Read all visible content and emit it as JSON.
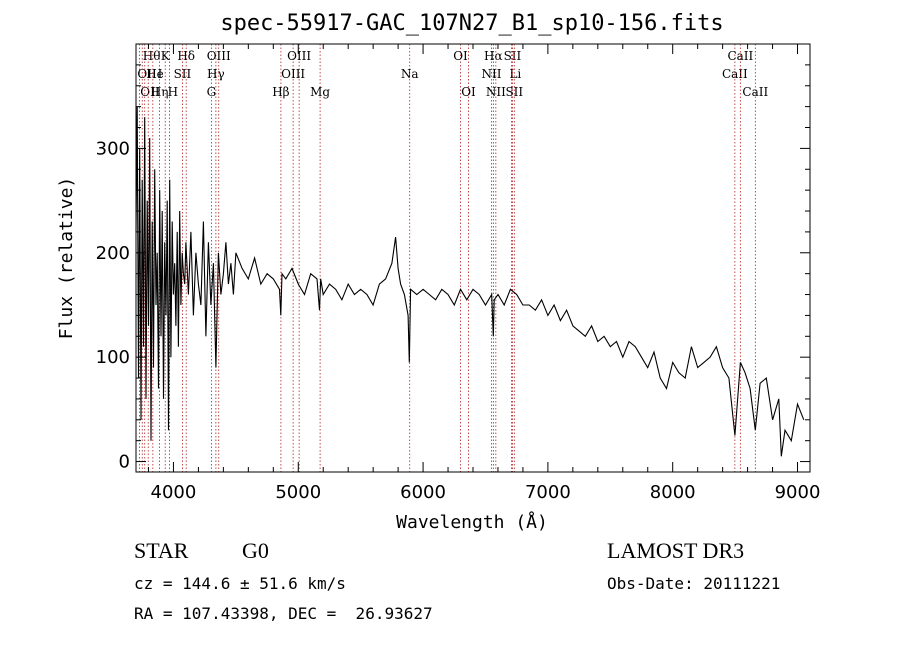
{
  "chart_data": {
    "type": "line",
    "title": "spec-55917-GAC_107N27_B1_sp10-156.fits",
    "xlabel": "Wavelength (Å)",
    "ylabel": "Flux (relative)",
    "xlim": [
      3700,
      9100
    ],
    "ylim": [
      -10,
      400
    ],
    "xticks": [
      4000,
      5000,
      6000,
      7000,
      8000,
      9000
    ],
    "yticks": [
      0,
      100,
      200,
      300
    ],
    "grid": false,
    "series": [
      {
        "x": [
          3700,
          3710,
          3720,
          3730,
          3740,
          3750,
          3760,
          3770,
          3780,
          3790,
          3800,
          3810,
          3820,
          3830,
          3840,
          3850,
          3860,
          3870,
          3880,
          3890,
          3900,
          3910,
          3920,
          3930,
          3940,
          3950,
          3960,
          3970,
          3980,
          3990,
          4000,
          4010,
          4020,
          4030,
          4040,
          4050,
          4060,
          4070,
          4080,
          4090,
          4100,
          4120,
          4140,
          4160,
          4180,
          4200,
          4220,
          4240,
          4260,
          4280,
          4300,
          4320,
          4340,
          4360,
          4380,
          4400,
          4420,
          4440,
          4460,
          4480,
          4500,
          4550,
          4600,
          4650,
          4700,
          4750,
          4800,
          4850,
          4860,
          4870,
          4900,
          4950,
          5000,
          5050,
          5100,
          5150,
          5170,
          5180,
          5200,
          5250,
          5300,
          5350,
          5400,
          5450,
          5500,
          5550,
          5600,
          5650,
          5700,
          5750,
          5780,
          5800,
          5820,
          5850,
          5880,
          5890,
          5900,
          5950,
          6000,
          6050,
          6100,
          6150,
          6200,
          6250,
          6300,
          6350,
          6400,
          6450,
          6500,
          6550,
          6563,
          6570,
          6600,
          6650,
          6700,
          6750,
          6800,
          6850,
          6900,
          6950,
          7000,
          7050,
          7100,
          7150,
          7200,
          7250,
          7300,
          7350,
          7400,
          7450,
          7500,
          7550,
          7600,
          7650,
          7700,
          7750,
          7800,
          7850,
          7900,
          7950,
          8000,
          8050,
          8100,
          8150,
          8200,
          8250,
          8300,
          8350,
          8400,
          8450,
          8498,
          8542,
          8580,
          8620,
          8662,
          8700,
          8750,
          8800,
          8850,
          8870,
          8900,
          8950,
          9000,
          9050
        ],
        "values": [
          220,
          340,
          80,
          300,
          40,
          270,
          110,
          330,
          60,
          250,
          130,
          310,
          20,
          230,
          90,
          280,
          150,
          200,
          70,
          260,
          120,
          240,
          60,
          210,
          140,
          250,
          30,
          270,
          100,
          230,
          160,
          190,
          130,
          220,
          110,
          240,
          150,
          200,
          180,
          170,
          210,
          160,
          220,
          140,
          200,
          170,
          150,
          230,
          120,
          210,
          150,
          190,
          90,
          200,
          160,
          180,
          210,
          170,
          190,
          160,
          200,
          185,
          175,
          195,
          170,
          180,
          175,
          165,
          140,
          180,
          175,
          185,
          170,
          160,
          180,
          175,
          145,
          175,
          160,
          170,
          165,
          155,
          170,
          160,
          165,
          160,
          150,
          170,
          175,
          190,
          215,
          185,
          170,
          160,
          140,
          95,
          165,
          160,
          165,
          160,
          155,
          165,
          160,
          150,
          165,
          155,
          165,
          160,
          150,
          160,
          120,
          155,
          160,
          150,
          165,
          160,
          150,
          150,
          145,
          155,
          140,
          150,
          135,
          145,
          130,
          125,
          120,
          130,
          115,
          120,
          110,
          115,
          100,
          115,
          110,
          100,
          90,
          105,
          80,
          70,
          95,
          85,
          80,
          110,
          90,
          95,
          100,
          110,
          90,
          80,
          25,
          95,
          85,
          70,
          30,
          75,
          80,
          40,
          60,
          5,
          30,
          20,
          55,
          40
        ]
      }
    ],
    "line_markers": [
      {
        "wave": 3727,
        "row": 1,
        "label": "OII",
        "align": "start"
      },
      {
        "wave": 3750,
        "row": 2,
        "label": "OII",
        "align": "start"
      },
      {
        "wave": 3770,
        "row": 0,
        "label": "Hθ",
        "align": "start"
      },
      {
        "wave": 3798,
        "row": 1,
        "label": "He",
        "align": "start"
      },
      {
        "wave": 3835,
        "row": 2,
        "label": "Hη",
        "align": "start"
      },
      {
        "wave": 3889,
        "row": 1,
        "label": "I",
        "align": "start"
      },
      {
        "wave": 3934,
        "row": 0,
        "label": "K",
        "align": "middle"
      },
      {
        "wave": 3969,
        "row": 2,
        "label": "H",
        "align": "start"
      },
      {
        "wave": 4072,
        "row": 1,
        "label": "SII",
        "align": "middle"
      },
      {
        "wave": 4102,
        "row": 0,
        "label": "Hδ",
        "align": "middle"
      },
      {
        "wave": 4304,
        "row": 2,
        "label": "G",
        "align": "middle"
      },
      {
        "wave": 4340,
        "row": 1,
        "label": "Hγ",
        "align": "middle"
      },
      {
        "wave": 4363,
        "row": 0,
        "label": "OIII",
        "align": "middle"
      },
      {
        "wave": 4861,
        "row": 2,
        "label": "Hβ",
        "align": "middle"
      },
      {
        "wave": 4959,
        "row": 1,
        "label": "OIII",
        "align": "middle"
      },
      {
        "wave": 5007,
        "row": 0,
        "label": "OIII",
        "align": "middle"
      },
      {
        "wave": 5175,
        "row": 2,
        "label": "Mg",
        "align": "middle"
      },
      {
        "wave": 5893,
        "row": 1,
        "label": "Na",
        "align": "middle"
      },
      {
        "wave": 6300,
        "row": 0,
        "label": "OI",
        "align": "middle"
      },
      {
        "wave": 6364,
        "row": 2,
        "label": "OI",
        "align": "middle"
      },
      {
        "wave": 6548,
        "row": 1,
        "label": "NII",
        "align": "middle"
      },
      {
        "wave": 6563,
        "row": 0,
        "label": "Hα",
        "align": "middle"
      },
      {
        "wave": 6583,
        "row": 2,
        "label": "NII",
        "align": "middle"
      },
      {
        "wave": 6708,
        "row": 1,
        "label": "Li",
        "align": "start"
      },
      {
        "wave": 6716,
        "row": 0,
        "label": "SII",
        "align": "middle"
      },
      {
        "wave": 6731,
        "row": 2,
        "label": "SII",
        "align": "middle"
      },
      {
        "wave": 8498,
        "row": 1,
        "label": "CaII",
        "align": "middle"
      },
      {
        "wave": 8542,
        "row": 0,
        "label": "CaII",
        "align": "middle"
      },
      {
        "wave": 8662,
        "row": 2,
        "label": "CaII",
        "align": "middle"
      }
    ]
  },
  "info": {
    "object_class": "STAR",
    "subclass": "G0",
    "survey": "LAMOST DR3",
    "redshift": "cz = 144.6 ± 51.6 km/s",
    "obs_date": "Obs-Date: 20111221",
    "coords": "RA = 107.43398, DEC =  26.93627"
  },
  "colors": {
    "spectrum": "#000000",
    "marker": "#b22222"
  }
}
